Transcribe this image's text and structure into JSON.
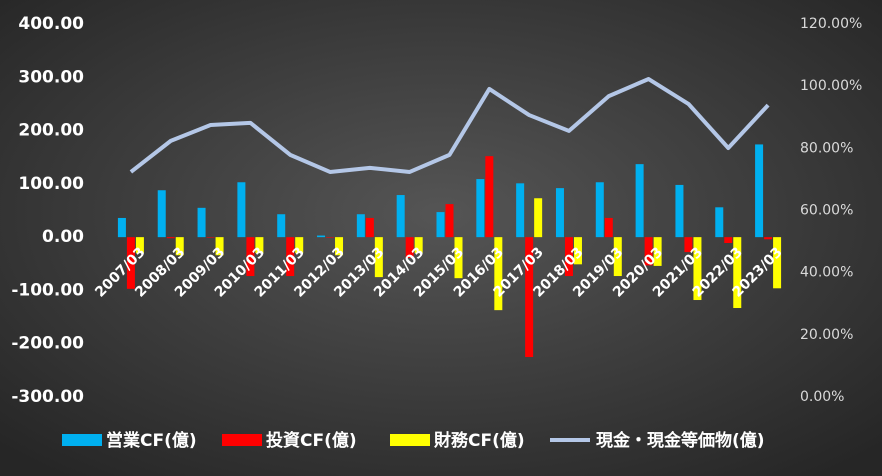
{
  "chart_data": {
    "type": "bar",
    "categories": [
      "2007/03",
      "2008/03",
      "2009/03",
      "2010/03",
      "2011/03",
      "2012/03",
      "2013/03",
      "2014/03",
      "2015/03",
      "2016/03",
      "2017/03",
      "2018/03",
      "2019/03",
      "2020/03",
      "2021/03",
      "2022/03",
      "2023/03"
    ],
    "series": [
      {
        "name": "営業CF(億)",
        "color": "#00b0f0",
        "values": [
          36,
          88,
          55,
          103,
          43,
          3,
          43,
          79,
          47,
          109,
          101,
          92,
          103,
          137,
          98,
          56,
          174
        ]
      },
      {
        "name": "投資CF(億)",
        "color": "#ff0000",
        "values": [
          -97,
          -2,
          -1,
          -73,
          -73,
          -1,
          36,
          -39,
          62,
          152,
          -225,
          -73,
          36,
          -53,
          -28,
          -11,
          -4
        ]
      },
      {
        "name": "財務CF(億)",
        "color": "#ffff00",
        "values": [
          -30,
          -34,
          -34,
          -30,
          -30,
          -34,
          -75,
          -30,
          -77,
          -137,
          73,
          -51,
          -73,
          -54,
          -118,
          -133,
          -96
        ]
      },
      {
        "name": "現金・現金等価物(億)",
        "color": "#b4c7e7",
        "type": "line",
        "axis": "y2",
        "values": [
          72.4,
          82.4,
          87.5,
          88.2,
          77.9,
          72.4,
          73.7,
          72.4,
          77.9,
          99.1,
          90.7,
          85.6,
          96.8,
          102.3,
          94.3,
          80.1,
          93.9
        ]
      }
    ],
    "ylim": [
      -300,
      400
    ],
    "yticks": [
      {
        "value": -300,
        "label": "-300.00"
      },
      {
        "value": -200,
        "label": "-200.00"
      },
      {
        "value": -100,
        "label": "-100.00"
      },
      {
        "value": 0,
        "label": "0.00"
      },
      {
        "value": 100,
        "label": "100.00"
      },
      {
        "value": 200,
        "label": "200.00"
      },
      {
        "value": 300,
        "label": "300.00"
      },
      {
        "value": 400,
        "label": "400.00"
      }
    ],
    "y2lim": [
      0,
      120
    ],
    "y2ticks": [
      {
        "value": 0,
        "label": "0.00%"
      },
      {
        "value": 20,
        "label": "20.00%"
      },
      {
        "value": 40,
        "label": "40.00%"
      },
      {
        "value": 60,
        "label": "60.00%"
      },
      {
        "value": 80,
        "label": "80.00%"
      },
      {
        "value": 100,
        "label": "100.00%"
      },
      {
        "value": 120,
        "label": "120.00%"
      }
    ],
    "grid": false,
    "legend": "bottom"
  }
}
